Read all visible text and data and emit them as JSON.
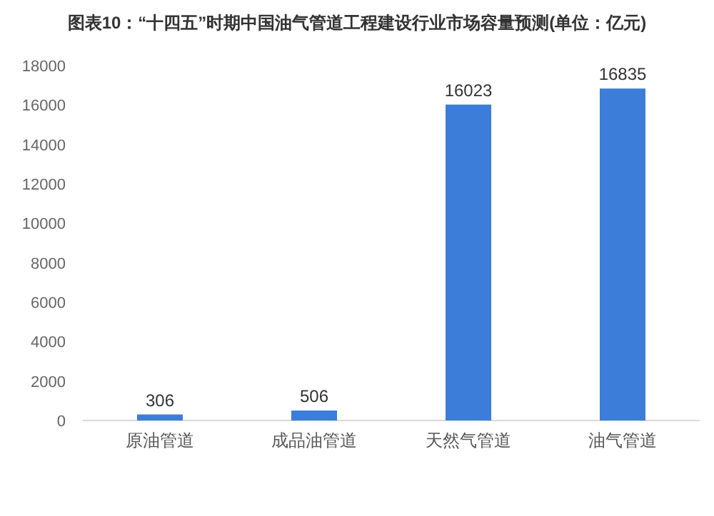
{
  "chart_data": {
    "type": "bar",
    "title": "图表10：“十四五”时期中国油气管道工程建设行业市场容量预测(单位：亿元)",
    "categories": [
      "原油管道",
      "成品油管道",
      "天然气管道",
      "油气管道"
    ],
    "values": [
      306,
      506,
      16023,
      16835
    ],
    "color": "#3c7dd9",
    "ylim": [
      0,
      18000
    ],
    "yticks": [
      0,
      2000,
      4000,
      6000,
      8000,
      10000,
      12000,
      14000,
      16000,
      18000
    ],
    "data_labels": true,
    "grid": false
  }
}
